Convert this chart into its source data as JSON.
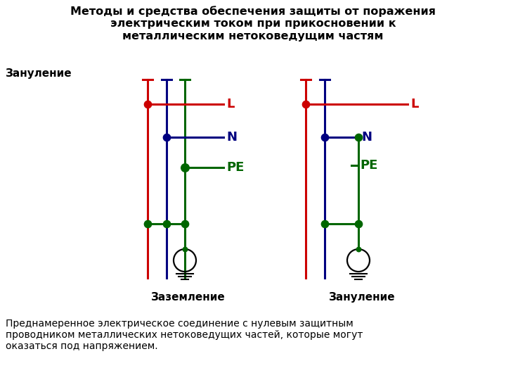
{
  "title": "Методы и средства обеспечения защиты от поражения\nэлектрическим током при прикосновении к\nметаллическим нетоковедущим частям",
  "subtitle": "Зануление",
  "bottom_text": "Преднамеренное электрическое соединение с нулевым защитным\nпроводником металлических нетоковедущих частей, которые могут\nоказаться под напряжением.",
  "label_left": "Заземление",
  "label_right": "Зануление",
  "color_red": "#CC0000",
  "color_blue": "#000080",
  "color_green": "#006600",
  "color_black": "#000000",
  "bg_color": "#FFFFFF"
}
